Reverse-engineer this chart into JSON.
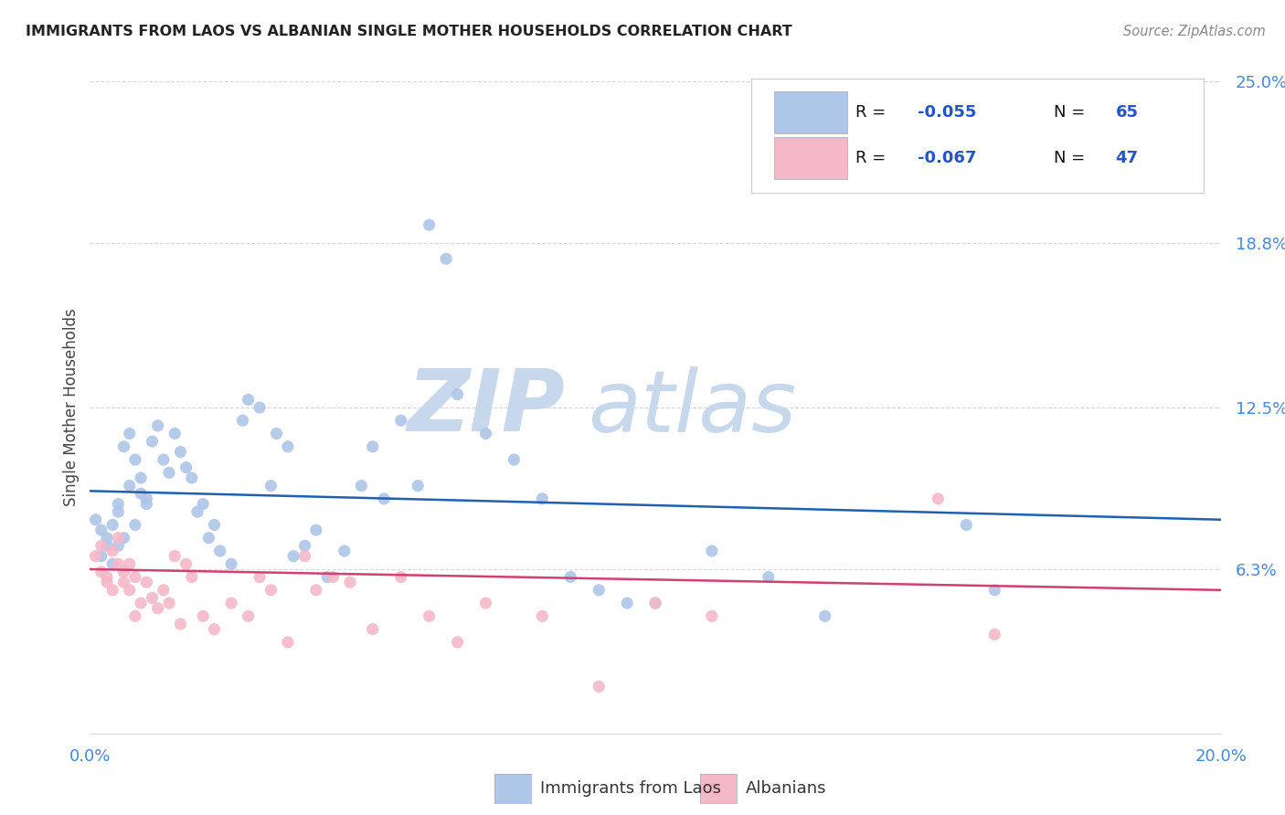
{
  "title": "IMMIGRANTS FROM LAOS VS ALBANIAN SINGLE MOTHER HOUSEHOLDS CORRELATION CHART",
  "source": "Source: ZipAtlas.com",
  "ylabel": "Single Mother Households",
  "xlabel_laos": "Immigrants from Laos",
  "xlabel_albanians": "Albanians",
  "laos_R": "-0.055",
  "laos_N": "65",
  "albanians_R": "-0.067",
  "albanians_N": "47",
  "xmin": 0.0,
  "xmax": 0.2,
  "ymin": 0.0,
  "ymax": 0.25,
  "yticks": [
    0.0,
    0.063,
    0.125,
    0.188,
    0.25
  ],
  "ytick_labels": [
    "",
    "6.3%",
    "12.5%",
    "18.8%",
    "25.0%"
  ],
  "xticks": [
    0.0,
    0.05,
    0.1,
    0.15,
    0.2
  ],
  "xtick_labels": [
    "0.0%",
    "",
    "",
    "",
    "20.0%"
  ],
  "color_laos": "#aec6e8",
  "color_albanians": "#f4b8c8",
  "line_color_laos": "#2060b0",
  "line_color_albanians": "#d04070",
  "watermark_zip_color": "#c8d8ec",
  "watermark_atlas_color": "#c8d8ec",
  "background_color": "#ffffff",
  "laos_x": [
    0.001,
    0.002,
    0.002,
    0.003,
    0.003,
    0.004,
    0.004,
    0.005,
    0.005,
    0.005,
    0.006,
    0.006,
    0.007,
    0.007,
    0.008,
    0.008,
    0.009,
    0.009,
    0.01,
    0.01,
    0.011,
    0.012,
    0.013,
    0.014,
    0.015,
    0.016,
    0.017,
    0.018,
    0.019,
    0.02,
    0.021,
    0.022,
    0.023,
    0.025,
    0.027,
    0.028,
    0.03,
    0.032,
    0.033,
    0.035,
    0.036,
    0.038,
    0.04,
    0.042,
    0.045,
    0.048,
    0.05,
    0.052,
    0.055,
    0.058,
    0.06,
    0.063,
    0.065,
    0.07,
    0.075,
    0.08,
    0.085,
    0.09,
    0.095,
    0.1,
    0.11,
    0.12,
    0.13,
    0.155,
    0.16
  ],
  "laos_y": [
    0.082,
    0.078,
    0.068,
    0.072,
    0.075,
    0.065,
    0.08,
    0.085,
    0.088,
    0.072,
    0.11,
    0.075,
    0.115,
    0.095,
    0.105,
    0.08,
    0.092,
    0.098,
    0.088,
    0.09,
    0.112,
    0.118,
    0.105,
    0.1,
    0.115,
    0.108,
    0.102,
    0.098,
    0.085,
    0.088,
    0.075,
    0.08,
    0.07,
    0.065,
    0.12,
    0.128,
    0.125,
    0.095,
    0.115,
    0.11,
    0.068,
    0.072,
    0.078,
    0.06,
    0.07,
    0.095,
    0.11,
    0.09,
    0.12,
    0.095,
    0.195,
    0.182,
    0.13,
    0.115,
    0.105,
    0.09,
    0.06,
    0.055,
    0.05,
    0.05,
    0.07,
    0.06,
    0.045,
    0.08,
    0.055
  ],
  "albanians_x": [
    0.001,
    0.002,
    0.002,
    0.003,
    0.003,
    0.004,
    0.004,
    0.005,
    0.005,
    0.006,
    0.006,
    0.007,
    0.007,
    0.008,
    0.008,
    0.009,
    0.01,
    0.011,
    0.012,
    0.013,
    0.014,
    0.015,
    0.016,
    0.017,
    0.018,
    0.02,
    0.022,
    0.025,
    0.028,
    0.03,
    0.032,
    0.035,
    0.038,
    0.04,
    0.043,
    0.046,
    0.05,
    0.055,
    0.06,
    0.065,
    0.07,
    0.08,
    0.09,
    0.1,
    0.11,
    0.15,
    0.16
  ],
  "albanians_y": [
    0.068,
    0.072,
    0.062,
    0.06,
    0.058,
    0.07,
    0.055,
    0.065,
    0.075,
    0.062,
    0.058,
    0.055,
    0.065,
    0.06,
    0.045,
    0.05,
    0.058,
    0.052,
    0.048,
    0.055,
    0.05,
    0.068,
    0.042,
    0.065,
    0.06,
    0.045,
    0.04,
    0.05,
    0.045,
    0.06,
    0.055,
    0.035,
    0.068,
    0.055,
    0.06,
    0.058,
    0.04,
    0.06,
    0.045,
    0.035,
    0.05,
    0.045,
    0.018,
    0.05,
    0.045,
    0.09,
    0.038
  ],
  "grid_color": "#d0d8e8",
  "tick_color_right": "#4488dd",
  "tick_color_bottom": "#4488dd",
  "legend_label_color": "#000000",
  "legend_value_color": "#2255cc"
}
